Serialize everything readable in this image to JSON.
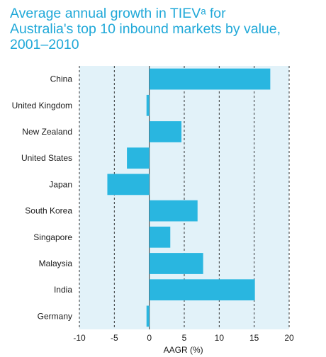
{
  "title_lines": [
    "Average annual growth in TIEVᵃ for",
    "Australia's top 10 inbound markets by value,",
    "2001–2010"
  ],
  "colors": {
    "title": "#1fa8d8",
    "bar": "#29b6e0",
    "plot_bg": "#e2f2f9",
    "grid": "#333333"
  },
  "chart_data": {
    "type": "bar",
    "orientation": "horizontal",
    "categories": [
      "China",
      "United Kingdom",
      "New Zealand",
      "United States",
      "Japan",
      "South Korea",
      "Singapore",
      "Malaysia",
      "India",
      "Germany"
    ],
    "values": [
      17.3,
      -0.4,
      4.6,
      -3.2,
      -6.0,
      6.9,
      3.0,
      7.7,
      15.1,
      -0.4
    ],
    "xlabel": "AAGR (%)",
    "xlim": [
      -10,
      20
    ],
    "xticks": [
      -10,
      -5,
      0,
      5,
      10,
      15,
      20
    ],
    "grid": "vertical dashed",
    "legend": "none"
  }
}
